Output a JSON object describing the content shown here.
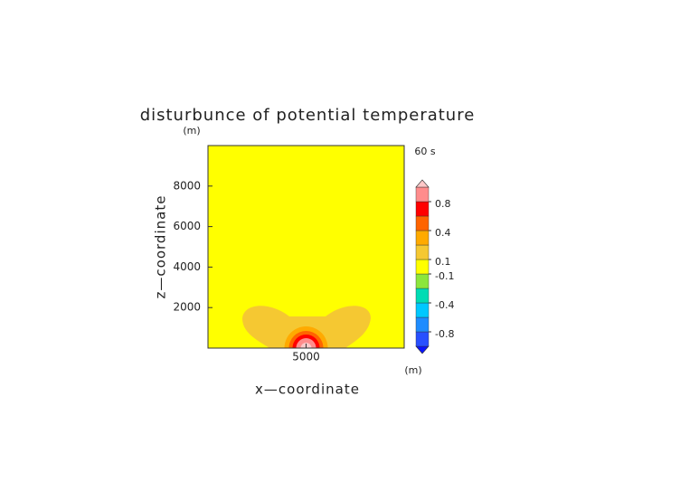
{
  "chart_data": {
    "type": "contour",
    "title": "disturbunce of potential temperature",
    "time_label": "60 s",
    "x_label": "x—coordinate",
    "y_label": "z—coordinate",
    "x_unit": "(m)",
    "y_unit": "(m)",
    "xlim": [
      0,
      10000
    ],
    "ylim": [
      0,
      10000
    ],
    "xticks": [
      5000
    ],
    "yticks": [
      2000,
      4000,
      6000,
      8000
    ],
    "levels": [
      -1,
      -0.8,
      -0.6,
      -0.4,
      -0.2,
      -0.1,
      0.1,
      0.2,
      0.4,
      0.6,
      0.8,
      1
    ],
    "colors": [
      "#0a14ff",
      "#2850ff",
      "#1e8cff",
      "#00c8ff",
      "#00dcb4",
      "#8ce63c",
      "#ffff00",
      "#f5c832",
      "#ffaa00",
      "#ff6400",
      "#ff0000",
      "#ff8c8c",
      "#ffc8c8"
    ],
    "colorbar_ticks": [
      -0.8,
      -0.4,
      -0.1,
      0.1,
      0.4,
      0.8
    ]
  }
}
